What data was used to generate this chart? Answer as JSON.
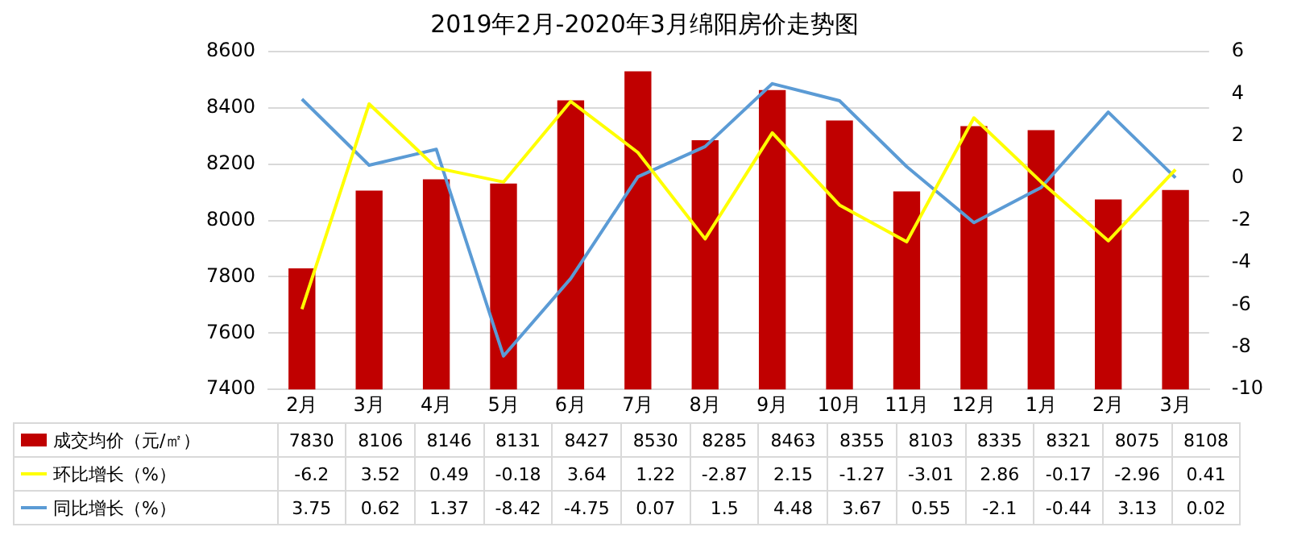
{
  "chart_data": {
    "type": "bar",
    "title": "2019年2月-2020年3月绵阳房价走势图",
    "categories": [
      "2月",
      "3月",
      "4月",
      "5月",
      "6月",
      "7月",
      "8月",
      "9月",
      "10月",
      "11月",
      "12月",
      "1月",
      "2月",
      "3月"
    ],
    "series": [
      {
        "name": "成交均价（元/㎡）",
        "color": "#c00000",
        "values": [
          7830,
          8106,
          8146,
          8131,
          8427,
          8530,
          8285,
          8463,
          8355,
          8103,
          8335,
          8321,
          8075,
          8108
        ]
      },
      {
        "name": "环比增长（%）",
        "type": "line",
        "axis": "y2",
        "color": "#ffff00",
        "values": [
          -6.2,
          3.52,
          0.49,
          -0.18,
          3.64,
          1.22,
          -2.87,
          2.15,
          -1.27,
          -3.01,
          2.86,
          -0.17,
          -2.96,
          0.41
        ]
      },
      {
        "name": "同比增长（%）",
        "type": "line",
        "axis": "y2",
        "color": "#5b9bd5",
        "values": [
          3.75,
          0.62,
          1.37,
          -8.42,
          -4.75,
          0.07,
          1.5,
          4.48,
          3.67,
          0.55,
          -2.1,
          -0.44,
          3.13,
          0.02
        ]
      }
    ],
    "ylim": [
      7400,
      8600
    ],
    "yticks": [
      7400,
      7600,
      7800,
      8000,
      8200,
      8400,
      8600
    ],
    "y2lim": [
      -10,
      6
    ],
    "y2ticks": [
      -10,
      -8,
      -6,
      -4,
      -2,
      0,
      2,
      4,
      6
    ],
    "grid": "y",
    "legend": "bottom",
    "data_labels": true,
    "marker": "none",
    "line_style": "solid"
  }
}
